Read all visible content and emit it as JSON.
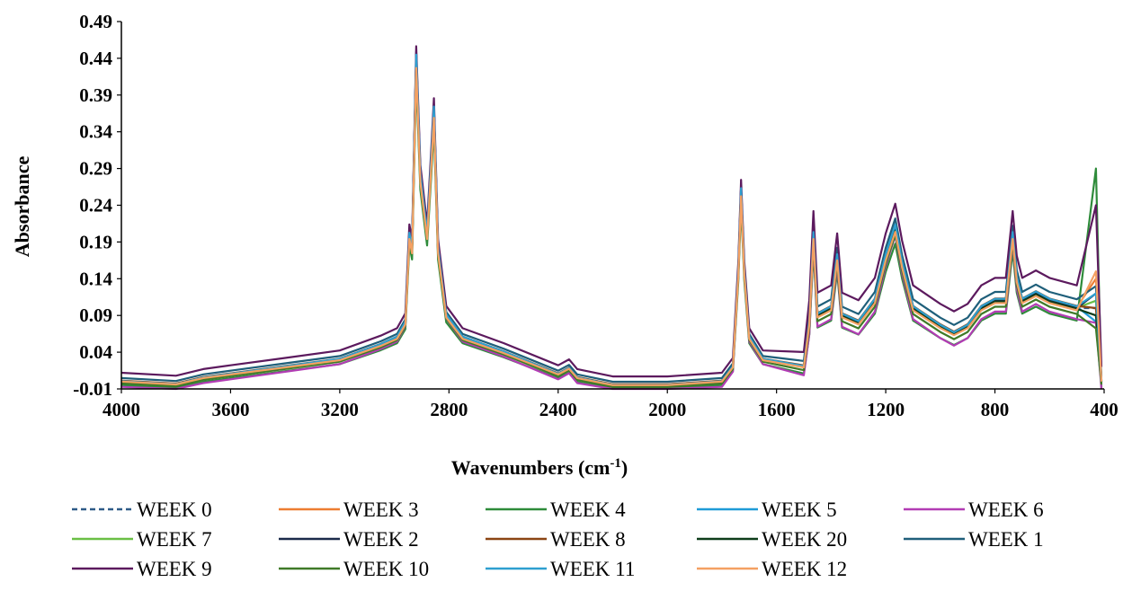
{
  "chart_data": {
    "type": "line",
    "title": "",
    "xlabel": "Wavenumbers (cm",
    "xlabel_sup": "-1",
    "xlabel_close": ")",
    "ylabel": "Absorbance",
    "xlim": [
      4000,
      400
    ],
    "ylim": [
      -0.01,
      0.49
    ],
    "x_reversed": true,
    "x_ticks": [
      "4000",
      "3600",
      "3200",
      "2800",
      "2400",
      "2000",
      "1600",
      "1200",
      "800",
      "400"
    ],
    "y_ticks": [
      "-0.01",
      "0.04",
      "0.09",
      "0.14",
      "0.19",
      "0.24",
      "0.29",
      "0.34",
      "0.39",
      "0.44",
      "0.49"
    ],
    "grid": false,
    "legend_position": "bottom",
    "series": [
      {
        "name": "WEEK 0",
        "color": "#2e5a87",
        "dash": true,
        "offset": 0.0,
        "scale": 1.0,
        "tail": 0.1
      },
      {
        "name": "WEEK 3",
        "color": "#ed7d31",
        "dash": false,
        "offset": 0.002,
        "scale": 0.98,
        "tail": 0.14
      },
      {
        "name": "WEEK 4",
        "color": "#2e8b3a",
        "dash": false,
        "offset": -0.008,
        "scale": 0.95,
        "tail": 0.29
      },
      {
        "name": "WEEK 5",
        "color": "#1f9bd7",
        "dash": false,
        "offset": 0.0,
        "scale": 1.02,
        "tail": 0.05
      },
      {
        "name": "WEEK 6",
        "color": "#b23cb4",
        "dash": false,
        "offset": -0.012,
        "scale": 1.03,
        "tail": 0.08
      },
      {
        "name": "WEEK 7",
        "color": "#6abf45",
        "dash": false,
        "offset": 0.001,
        "scale": 0.99,
        "tail": 0.11
      },
      {
        "name": "WEEK 2",
        "color": "#1b2a4a",
        "dash": false,
        "offset": 0.0,
        "scale": 1.0,
        "tail": 0.12
      },
      {
        "name": "WEEK 8",
        "color": "#8b4513",
        "dash": false,
        "offset": 0.002,
        "scale": 1.0,
        "tail": 0.1
      },
      {
        "name": "WEEK 20",
        "color": "#0e3d1a",
        "dash": false,
        "offset": 0.0,
        "scale": 0.99,
        "tail": 0.09
      },
      {
        "name": "WEEK 1",
        "color": "#1f5f7a",
        "dash": false,
        "offset": 0.008,
        "scale": 1.0,
        "tail": 0.13
      },
      {
        "name": "WEEK 9",
        "color": "#5c1a5e",
        "dash": false,
        "offset": 0.02,
        "scale": 1.01,
        "tail": 0.24
      },
      {
        "name": "WEEK 10",
        "color": "#3f7a28",
        "dash": false,
        "offset": -0.004,
        "scale": 0.98,
        "tail": 0.07
      },
      {
        "name": "WEEK 11",
        "color": "#2e9fd0",
        "dash": false,
        "offset": 0.001,
        "scale": 1.01,
        "tail": 0.12
      },
      {
        "name": "WEEK 12",
        "color": "#f4a062",
        "dash": false,
        "offset": 0.0,
        "scale": 0.97,
        "tail": 0.15
      }
    ],
    "base_curve": [
      [
        4000,
        0.0
      ],
      [
        3800,
        -0.004
      ],
      [
        3700,
        0.005
      ],
      [
        3600,
        0.01
      ],
      [
        3400,
        0.02
      ],
      [
        3200,
        0.03
      ],
      [
        3050,
        0.05
      ],
      [
        2990,
        0.06
      ],
      [
        2960,
        0.08
      ],
      [
        2945,
        0.2
      ],
      [
        2935,
        0.18
      ],
      [
        2920,
        0.44
      ],
      [
        2905,
        0.28
      ],
      [
        2880,
        0.2
      ],
      [
        2865,
        0.3
      ],
      [
        2855,
        0.37
      ],
      [
        2840,
        0.18
      ],
      [
        2810,
        0.09
      ],
      [
        2750,
        0.06
      ],
      [
        2600,
        0.04
      ],
      [
        2400,
        0.01
      ],
      [
        2360,
        0.018
      ],
      [
        2330,
        0.005
      ],
      [
        2200,
        -0.005
      ],
      [
        2000,
        -0.005
      ],
      [
        1800,
        0.0
      ],
      [
        1760,
        0.02
      ],
      [
        1740,
        0.15
      ],
      [
        1730,
        0.26
      ],
      [
        1718,
        0.15
      ],
      [
        1700,
        0.06
      ],
      [
        1650,
        0.03
      ],
      [
        1500,
        0.02
      ],
      [
        1480,
        0.08
      ],
      [
        1465,
        0.2
      ],
      [
        1450,
        0.09
      ],
      [
        1400,
        0.1
      ],
      [
        1378,
        0.17
      ],
      [
        1360,
        0.09
      ],
      [
        1300,
        0.08
      ],
      [
        1240,
        0.11
      ],
      [
        1200,
        0.17
      ],
      [
        1165,
        0.21
      ],
      [
        1140,
        0.16
      ],
      [
        1100,
        0.1
      ],
      [
        1000,
        0.075
      ],
      [
        950,
        0.065
      ],
      [
        900,
        0.075
      ],
      [
        850,
        0.1
      ],
      [
        800,
        0.11
      ],
      [
        760,
        0.11
      ],
      [
        735,
        0.2
      ],
      [
        720,
        0.14
      ],
      [
        700,
        0.11
      ],
      [
        650,
        0.12
      ],
      [
        600,
        0.11
      ],
      [
        500,
        0.1
      ],
      [
        430,
        0.08
      ],
      [
        410,
        0.0
      ]
    ]
  },
  "legend": {
    "rows": [
      [
        "WEEK 0",
        "WEEK 3",
        "WEEK 4",
        "WEEK 5",
        "WEEK 6"
      ],
      [
        "WEEK 7",
        "WEEK 2",
        "WEEK 8",
        "WEEK 20",
        "WEEK 1"
      ],
      [
        "WEEK 9",
        "WEEK 10",
        "WEEK 11",
        "WEEK 12"
      ]
    ]
  }
}
